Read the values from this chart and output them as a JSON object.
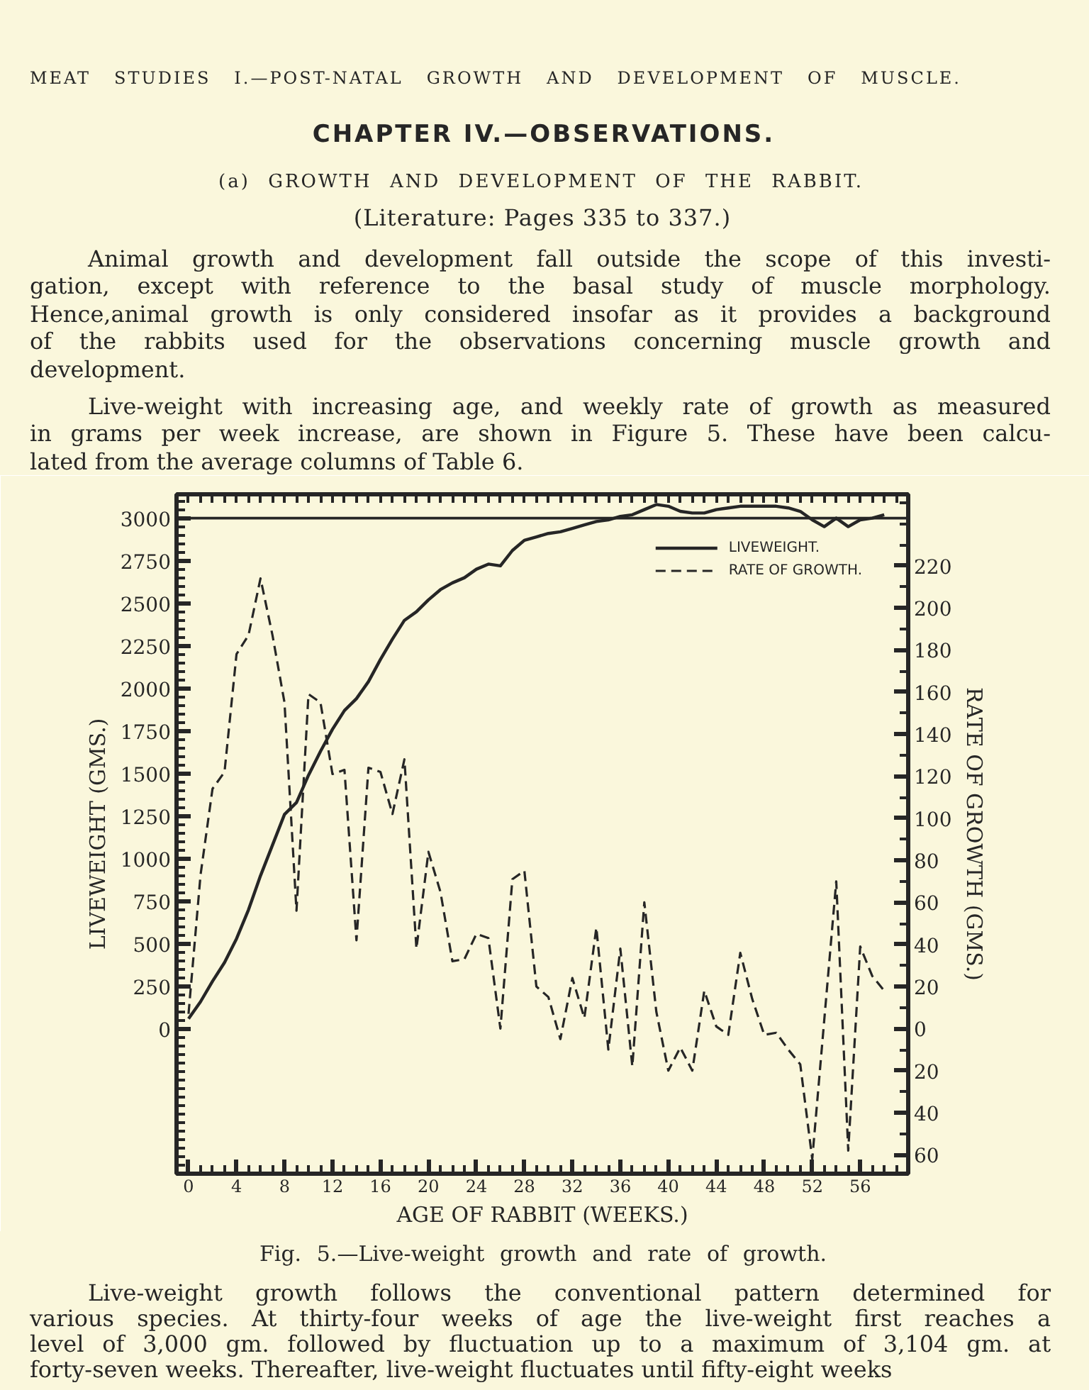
{
  "chart_data": {
    "type": "line",
    "title": "Fig. 5.—Live-weight growth and rate of growth.",
    "xlabel": "AGE OF RABBIT (WEEKS.)",
    "ylabel": "LIVEWEIGHT (GMS.)",
    "y2label": "RATE OF GROWTH (GMS.)",
    "annotations": [
      "MEAT STUDIES I.—POST-NATAL GROWTH AND DEVELOPMENT OF MUSCLE.",
      "CHAPTER IV.—OBSERVATIONS.",
      "(a) GROWTH AND DEVELOPMENT OF THE RABBIT.",
      "(Literature: Pages 335 to 337.)",
      "Animal growth and development fall outside the scope of this investi-\ngation, except with reference to the basal study of muscle morphology.\nHence,animal growth is only considered insofar as it provides a background\nof the rabbits used for the observations concerning muscle growth and\ndevelopment.",
      "Live-weight with increasing age, and weekly rate of growth as measured\nin grams per week increase, are shown in Figure 5. These have been calcu-\nlated from the average columns of Table 6.",
      "Live-weight growth follows the conventional pattern determined for\nvarious species. At thirty-four weeks of age the live-weight first reaches a\nlevel of 3,000 gm. followed by fluctuation up to a maximum of 3,104 gm. at\nforty-seven weeks. Thereafter, live-weight fluctuates until fifty-eight weeks"
    ],
    "x": [
      0,
      1,
      2,
      3,
      4,
      5,
      6,
      7,
      8,
      9,
      10,
      11,
      12,
      13,
      14,
      15,
      16,
      17,
      18,
      19,
      20,
      21,
      22,
      23,
      24,
      25,
      26,
      27,
      28,
      29,
      30,
      31,
      32,
      33,
      34,
      35,
      36,
      37,
      38,
      39,
      40,
      41,
      42,
      43,
      44,
      45,
      46,
      47,
      48,
      49,
      50,
      51,
      52,
      53,
      54,
      55,
      56,
      57,
      58
    ],
    "series": [
      {
        "name": "LIVEWEIGHT.",
        "color": "#262626",
        "line_style": "solid",
        "values": [
          60,
          160,
          280,
          390,
          530,
          700,
          900,
          1080,
          1260,
          1330,
          1490,
          1630,
          1760,
          1870,
          1940,
          2040,
          2170,
          2290,
          2400,
          2450,
          2520,
          2580,
          2620,
          2650,
          2700,
          2730,
          2720,
          2810,
          2870,
          2890,
          2910,
          2920,
          2940,
          2960,
          2980,
          2990,
          3010,
          3020,
          3050,
          3080,
          3070,
          3040,
          3030,
          3030,
          3050,
          3060,
          3070,
          3070,
          3070,
          3070,
          3060,
          3040,
          2990,
          2950,
          3000,
          2950,
          2990,
          3000,
          3020
        ]
      },
      {
        "name": "RATE OF GROWTH.",
        "color": "#262626",
        "line_style": "dashed",
        "axis": "y2",
        "values": [
          7,
          73,
          114,
          122,
          178,
          187,
          214,
          187,
          155,
          56,
          159,
          155,
          121,
          123,
          42,
          124,
          122,
          102,
          128,
          38,
          84,
          65,
          32,
          33,
          45,
          43,
          0,
          71,
          75,
          20,
          15,
          -5,
          24,
          5,
          48,
          -10,
          38,
          -18,
          60,
          8,
          -20,
          -9,
          -20,
          18,
          1,
          -3,
          36,
          14,
          -3,
          -2,
          -10,
          -17,
          -62,
          4,
          70,
          -58,
          39,
          25,
          18
        ]
      }
    ],
    "xlim": [
      -1,
      60
    ],
    "xticks": [
      0,
      4,
      8,
      12,
      16,
      20,
      24,
      28,
      32,
      36,
      40,
      44,
      48,
      52,
      56
    ],
    "ylim": [
      -850,
      3140
    ],
    "yticks": [
      0,
      250,
      500,
      750,
      1000,
      1250,
      1500,
      1750,
      2000,
      2250,
      2500,
      2750,
      3000
    ],
    "y2lim": [
      -69,
      254
    ],
    "y2ticks": [
      {
        "value": -60,
        "label": "60"
      },
      {
        "value": -40,
        "label": "40"
      },
      {
        "value": -20,
        "label": "20"
      },
      0,
      20,
      40,
      60,
      80,
      100,
      120,
      140,
      160,
      180,
      200,
      220
    ],
    "ref_lines": [
      {
        "axis": "y",
        "value": 3000,
        "color": "#262626"
      }
    ],
    "grid": false,
    "legend": "top right",
    "marker": "none"
  }
}
